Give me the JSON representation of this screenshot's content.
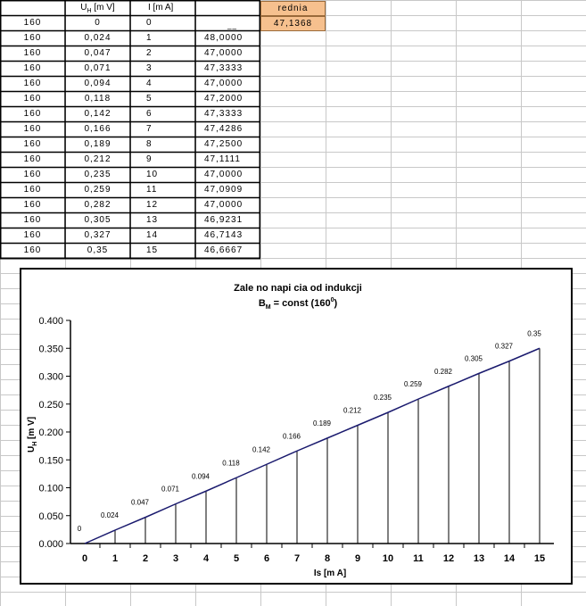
{
  "table": {
    "headers": {
      "col2_main": "U",
      "col2_sub": "H",
      "col2_unit": " [m V]",
      "col3": "I [m A]",
      "avg_label": "rednia"
    },
    "avg_value": "47,1368",
    "extra_mark": "__",
    "rows": [
      {
        "b": "160",
        "u": "0",
        "i": "0",
        "r": ""
      },
      {
        "b": "160",
        "u": "0,024",
        "i": "1",
        "r": "48,0000"
      },
      {
        "b": "160",
        "u": "0,047",
        "i": "2",
        "r": "47,0000"
      },
      {
        "b": "160",
        "u": "0,071",
        "i": "3",
        "r": "47,3333"
      },
      {
        "b": "160",
        "u": "0,094",
        "i": "4",
        "r": "47,0000"
      },
      {
        "b": "160",
        "u": "0,118",
        "i": "5",
        "r": "47,2000"
      },
      {
        "b": "160",
        "u": "0,142",
        "i": "6",
        "r": "47,3333"
      },
      {
        "b": "160",
        "u": "0,166",
        "i": "7",
        "r": "47,4286"
      },
      {
        "b": "160",
        "u": "0,189",
        "i": "8",
        "r": "47,2500"
      },
      {
        "b": "160",
        "u": "0,212",
        "i": "9",
        "r": "47,1111"
      },
      {
        "b": "160",
        "u": "0,235",
        "i": "10",
        "r": "47,0000"
      },
      {
        "b": "160",
        "u": "0,259",
        "i": "11",
        "r": "47,0909"
      },
      {
        "b": "160",
        "u": "0,282",
        "i": "12",
        "r": "47,0000"
      },
      {
        "b": "160",
        "u": "0,305",
        "i": "13",
        "r": "46,9231"
      },
      {
        "b": "160",
        "u": "0,327",
        "i": "14",
        "r": "46,7143"
      },
      {
        "b": "160",
        "u": "0,35",
        "i": "15",
        "r": "46,6667"
      }
    ]
  },
  "chart_data": {
    "type": "line",
    "title_line1": "Zale  no     napi  cia od indukcji",
    "title_line2_main": "B",
    "title_line2_sub": "M",
    "title_line2_rest": " = const (160",
    "title_line2_sup": "0",
    "title_line2_end": ")",
    "xlabel": "Is  [m A]",
    "ylabel_main": "U",
    "ylabel_sub": "H",
    "ylabel_rest": " [m V]",
    "x": [
      0,
      1,
      2,
      3,
      4,
      5,
      6,
      7,
      8,
      9,
      10,
      11,
      12,
      13,
      14,
      15
    ],
    "series": [
      {
        "values": [
          0,
          0.024,
          0.047,
          0.071,
          0.094,
          0.118,
          0.142,
          0.166,
          0.189,
          0.212,
          0.235,
          0.259,
          0.282,
          0.305,
          0.327,
          0.35
        ]
      }
    ],
    "data_labels": [
      "0",
      "0.024",
      "0.047",
      "0.071",
      "0.094",
      "0.118",
      "0.142",
      "0.166",
      "0.189",
      "0.212",
      "0.235",
      "0.259",
      "0.282",
      "0.305",
      "0.327",
      "0.35"
    ],
    "ylim": [
      0,
      0.4
    ],
    "yticks": [
      "0.000",
      "0.050",
      "0.100",
      "0.150",
      "0.200",
      "0.250",
      "0.300",
      "0.350",
      "0.400"
    ],
    "xticks": [
      "0",
      "1",
      "2",
      "3",
      "4",
      "5",
      "6",
      "7",
      "8",
      "9",
      "10",
      "11",
      "12",
      "13",
      "14",
      "15"
    ],
    "drop_lines": true,
    "grid": false,
    "line_color": "#1a1a6e"
  }
}
